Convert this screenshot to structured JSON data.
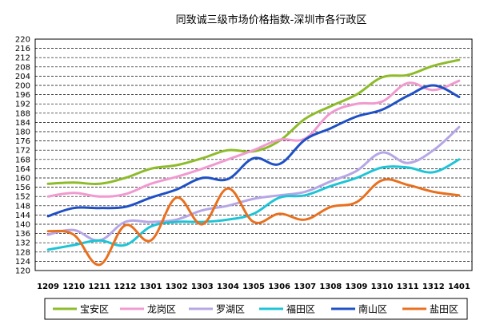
{
  "chart_data": {
    "type": "line",
    "title": "同致诚三级市场价格指数-深圳市各行政区",
    "xlabel": "",
    "ylabel": "",
    "ylim": [
      120,
      220
    ],
    "ytick_step": 4,
    "grid": "horizontal-dashed",
    "legend_position": "bottom",
    "categories": [
      "1209",
      "1210",
      "1211",
      "1212",
      "1301",
      "1302",
      "1303",
      "1304",
      "1305",
      "1306",
      "1307",
      "1308",
      "1309",
      "1310",
      "1311",
      "1312",
      "1401"
    ],
    "series": [
      {
        "name": "宝安区",
        "color": "#8dbb2a",
        "values": [
          157.5,
          158,
          157.5,
          160,
          164,
          165.5,
          168.5,
          172,
          171.5,
          176,
          185.5,
          191,
          196,
          203.5,
          204.5,
          208.5,
          211
        ]
      },
      {
        "name": "龙岗区",
        "color": "#f09ad0",
        "values": [
          152,
          153.5,
          152,
          153,
          157.5,
          160.5,
          164,
          168,
          172,
          176.5,
          177,
          188,
          192,
          193,
          201,
          198,
          202
        ]
      },
      {
        "name": "罗湖区",
        "color": "#b6a6e6",
        "values": [
          135.5,
          137.5,
          133,
          141,
          141,
          142,
          146,
          148,
          151,
          152.5,
          154,
          158.5,
          163,
          171,
          166.5,
          172,
          182
        ]
      },
      {
        "name": "福田区",
        "color": "#1ec4d6",
        "values": [
          129,
          131,
          133,
          131,
          139,
          141,
          141,
          142,
          144.5,
          151.5,
          152.5,
          156.5,
          160,
          164.5,
          164.5,
          162.5,
          168
        ]
      },
      {
        "name": "南山区",
        "color": "#1f50c4",
        "values": [
          143.5,
          147,
          147,
          147.5,
          151.5,
          155,
          160,
          159.5,
          168.5,
          166,
          176.5,
          181.5,
          186.5,
          189.5,
          195.5,
          200,
          195
        ]
      },
      {
        "name": "盐田区",
        "color": "#e8701f",
        "values": [
          137,
          135.5,
          122.5,
          139.5,
          133,
          151.5,
          140,
          155.5,
          141,
          144.5,
          142,
          147.5,
          149.5,
          159,
          157,
          154,
          152.5
        ]
      }
    ]
  }
}
